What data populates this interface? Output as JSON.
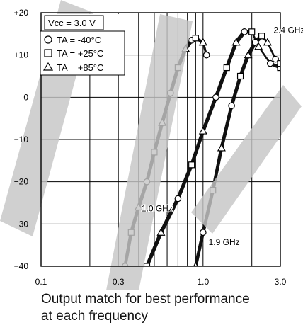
{
  "chart_data": {
    "type": "line",
    "x_scale": "log",
    "xlim": [
      0.1,
      3.0
    ],
    "ylim": [
      -40,
      20
    ],
    "x_ticks": [
      {
        "value": 0.1,
        "label": "0.1"
      },
      {
        "value": 0.3,
        "label": "0.3"
      },
      {
        "value": 1.0,
        "label": "1.0"
      },
      {
        "value": 3.0,
        "label": "3.0"
      }
    ],
    "y_ticks": [
      {
        "value": 20,
        "label": "+20"
      },
      {
        "value": 10,
        "label": "+10"
      },
      {
        "value": 0,
        "label": "0"
      },
      {
        "value": -10,
        "label": "−10"
      },
      {
        "value": -20,
        "label": "−20"
      },
      {
        "value": -30,
        "label": "−30"
      },
      {
        "value": -40,
        "label": "−40"
      }
    ],
    "grid": true,
    "legend": {
      "placement": "top-left",
      "header": "Vcc = 3.0 V",
      "entries": [
        {
          "marker": "circle",
          "label": "TA = -40°C"
        },
        {
          "marker": "square",
          "label": "TA = +25°C"
        },
        {
          "marker": "triangle",
          "label": "TA = +85°C"
        }
      ]
    },
    "annotations": [
      {
        "text": "1.0 GHz",
        "x": 0.52,
        "y": -27
      },
      {
        "text": "1.9 GHz",
        "x": 1.35,
        "y": -35
      },
      {
        "text": "2.4 GHz",
        "x": 3.4,
        "y": 15.2
      }
    ],
    "curves": [
      {
        "tuned_for": "1.0 GHz",
        "x": [
          0.33,
          0.36,
          0.4,
          0.45,
          0.5,
          0.56,
          0.63,
          0.7,
          0.78,
          0.85,
          0.9,
          1.0,
          1.05
        ],
        "y": [
          -40,
          -32,
          -26,
          -20,
          -13,
          -6,
          1,
          7,
          11.5,
          13.5,
          14,
          13,
          10
        ]
      },
      {
        "tuned_for": "1.9 GHz",
        "x": [
          0.45,
          0.55,
          0.7,
          0.85,
          1.0,
          1.2,
          1.4,
          1.6,
          1.8,
          2.0,
          2.2,
          2.6,
          3.0
        ],
        "y": [
          -40,
          -32,
          -24,
          -16,
          -8,
          0,
          7,
          13,
          15.5,
          15.5,
          12,
          8,
          7
        ]
      },
      {
        "tuned_for": "2.4 GHz",
        "x": [
          0.9,
          1.0,
          1.15,
          1.3,
          1.5,
          1.7,
          1.9,
          2.1,
          2.3,
          2.5,
          2.8,
          3.0
        ],
        "y": [
          -40,
          -32,
          -22,
          -12,
          -2,
          5,
          10,
          13,
          14.5,
          13,
          9,
          8
        ]
      }
    ]
  },
  "caption": {
    "line1": "Output match for best performance",
    "line2": "at each frequency"
  }
}
